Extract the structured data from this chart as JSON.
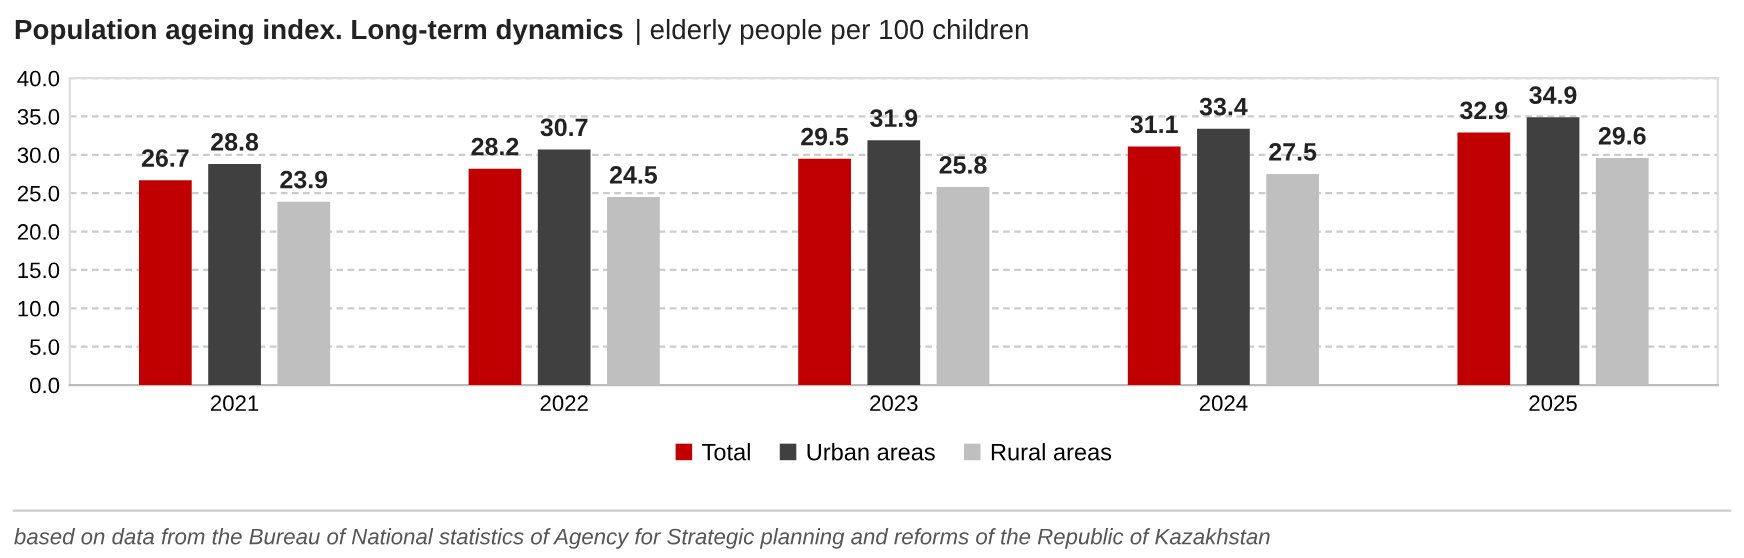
{
  "chart_data": {
    "type": "bar",
    "title": "Population ageing index. Long-term dynamics",
    "subtitle": "| elderly people per 100 children",
    "categories": [
      "2021",
      "2022",
      "2023",
      "2024",
      "2025"
    ],
    "series": [
      {
        "name": "Total",
        "color": "#c00000",
        "values": [
          26.7,
          28.2,
          29.5,
          31.1,
          32.9
        ]
      },
      {
        "name": "Urban areas",
        "color": "#404040",
        "values": [
          28.8,
          30.7,
          31.9,
          33.4,
          34.9
        ]
      },
      {
        "name": "Rural areas",
        "color": "#bfbfbf",
        "values": [
          23.9,
          24.5,
          25.8,
          27.5,
          29.6
        ]
      }
    ],
    "ylim": [
      0,
      40
    ],
    "yticks": [
      {
        "value": 0,
        "label": "0.0"
      },
      {
        "value": 5,
        "label": "5.0"
      },
      {
        "value": 10,
        "label": "10.0"
      },
      {
        "value": 15,
        "label": "15.0"
      },
      {
        "value": 20,
        "label": "20.0"
      },
      {
        "value": 25,
        "label": "25.0"
      },
      {
        "value": 30,
        "label": "30.0"
      },
      {
        "value": 35,
        "label": "35.0"
      },
      {
        "value": 40,
        "label": "40.0"
      }
    ],
    "grid": "y",
    "legend": "bottom",
    "data_labels": true,
    "annotations": [
      "based on data from the Bureau of National statistics of Agency for Strategic planning and reforms of the Republic of Kazakhstan"
    ]
  }
}
